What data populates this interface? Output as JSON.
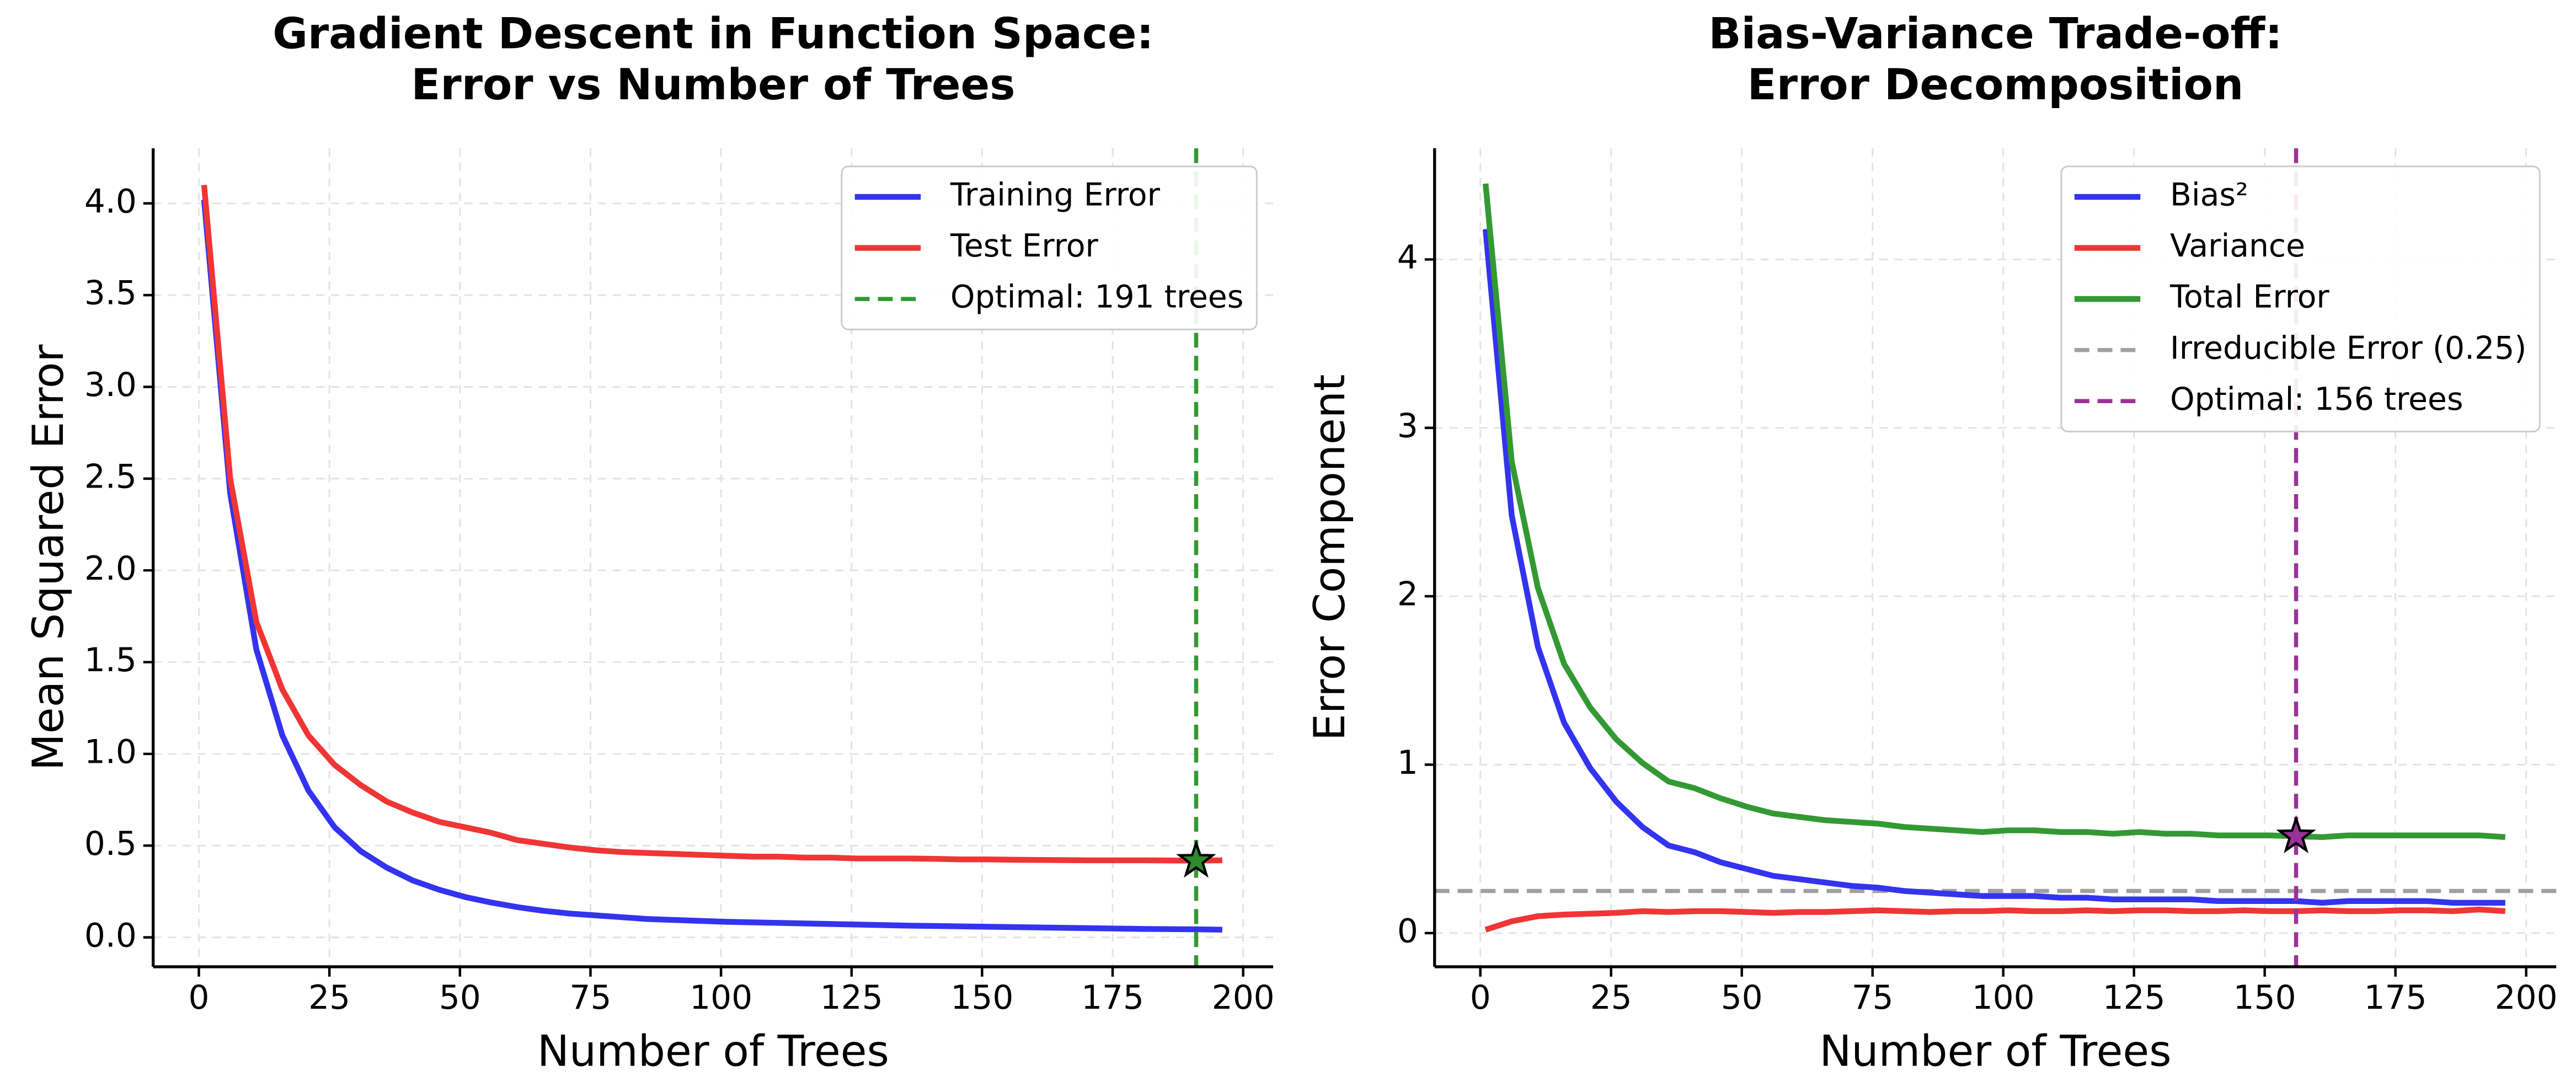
{
  "chart_data": [
    {
      "type": "line",
      "title": [
        "Gradient Descent in Function Space:",
        "Error vs Number of Trees"
      ],
      "xlabel": "Number of Trees",
      "ylabel": "Mean Squared Error",
      "x": [
        1,
        6,
        11,
        16,
        21,
        26,
        31,
        36,
        41,
        46,
        51,
        56,
        61,
        66,
        71,
        76,
        81,
        86,
        91,
        96,
        101,
        106,
        111,
        116,
        121,
        126,
        131,
        136,
        141,
        146,
        151,
        156,
        161,
        166,
        171,
        176,
        181,
        186,
        191,
        196
      ],
      "series": [
        {
          "name": "Training Error",
          "color": "#3333f0",
          "values": [
            4.02,
            2.42,
            1.57,
            1.1,
            0.8,
            0.6,
            0.47,
            0.38,
            0.31,
            0.26,
            0.22,
            0.19,
            0.165,
            0.145,
            0.13,
            0.12,
            0.11,
            0.1,
            0.095,
            0.09,
            0.085,
            0.082,
            0.079,
            0.076,
            0.073,
            0.07,
            0.067,
            0.064,
            0.062,
            0.06,
            0.058,
            0.056,
            0.054,
            0.052,
            0.05,
            0.048,
            0.046,
            0.045,
            0.044,
            0.042
          ]
        },
        {
          "name": "Test Error",
          "color": "#f03535",
          "values": [
            4.1,
            2.5,
            1.72,
            1.35,
            1.1,
            0.94,
            0.83,
            0.74,
            0.68,
            0.63,
            0.6,
            0.57,
            0.53,
            0.51,
            0.49,
            0.475,
            0.465,
            0.46,
            0.455,
            0.45,
            0.445,
            0.44,
            0.44,
            0.435,
            0.435,
            0.43,
            0.43,
            0.43,
            0.428,
            0.425,
            0.425,
            0.423,
            0.422,
            0.421,
            0.42,
            0.42,
            0.42,
            0.419,
            0.418,
            0.42
          ]
        }
      ],
      "vlines": [
        {
          "x": 191,
          "name": "Optimal: 191 trees",
          "color": "#339933"
        }
      ],
      "markers": [
        {
          "x": 191,
          "y": 0.418,
          "color": "#2e8b2e"
        }
      ],
      "xlim": [
        -8.75,
        205.75
      ],
      "ylim": [
        -0.16,
        4.3
      ],
      "xticks": [
        0,
        25,
        50,
        75,
        100,
        125,
        150,
        175,
        200
      ],
      "yticks": [
        {
          "value": 0,
          "label": "0.0"
        },
        0.5,
        {
          "value": 1,
          "label": "1.0"
        },
        1.5,
        {
          "value": 2,
          "label": "2.0"
        },
        2.5,
        {
          "value": 3,
          "label": "3.0"
        },
        3.5,
        {
          "value": 4,
          "label": "4.0"
        }
      ],
      "grid": true,
      "legend": "upper right"
    },
    {
      "type": "line",
      "title": [
        "Bias-Variance Trade-off:",
        "Error Decomposition"
      ],
      "xlabel": "Number of Trees",
      "ylabel": "Error Component",
      "x": [
        1,
        6,
        11,
        16,
        21,
        26,
        31,
        36,
        41,
        46,
        51,
        56,
        61,
        66,
        71,
        76,
        81,
        86,
        91,
        96,
        101,
        106,
        111,
        116,
        121,
        126,
        131,
        136,
        141,
        146,
        151,
        156,
        161,
        166,
        171,
        176,
        181,
        186,
        191,
        196
      ],
      "series": [
        {
          "name": "Bias²",
          "color": "#3333f0",
          "values": [
            4.18,
            2.48,
            1.7,
            1.25,
            0.98,
            0.78,
            0.63,
            0.52,
            0.48,
            0.42,
            0.38,
            0.34,
            0.32,
            0.3,
            0.28,
            0.27,
            0.25,
            0.24,
            0.23,
            0.22,
            0.22,
            0.22,
            0.21,
            0.21,
            0.2,
            0.2,
            0.2,
            0.2,
            0.19,
            0.19,
            0.19,
            0.19,
            0.18,
            0.19,
            0.19,
            0.19,
            0.19,
            0.18,
            0.18,
            0.18
          ]
        },
        {
          "name": "Variance",
          "color": "#f03535",
          "values": [
            0.02,
            0.07,
            0.1,
            0.11,
            0.115,
            0.12,
            0.13,
            0.125,
            0.13,
            0.13,
            0.125,
            0.12,
            0.125,
            0.125,
            0.13,
            0.135,
            0.13,
            0.125,
            0.13,
            0.13,
            0.135,
            0.13,
            0.13,
            0.135,
            0.13,
            0.135,
            0.135,
            0.13,
            0.13,
            0.135,
            0.13,
            0.13,
            0.135,
            0.13,
            0.13,
            0.135,
            0.135,
            0.13,
            0.14,
            0.13
          ]
        },
        {
          "name": "Total Error",
          "color": "#339933",
          "values": [
            4.45,
            2.8,
            2.05,
            1.6,
            1.34,
            1.15,
            1.01,
            0.9,
            0.86,
            0.8,
            0.75,
            0.71,
            0.69,
            0.67,
            0.66,
            0.65,
            0.63,
            0.62,
            0.61,
            0.6,
            0.61,
            0.61,
            0.6,
            0.6,
            0.59,
            0.6,
            0.59,
            0.59,
            0.58,
            0.58,
            0.58,
            0.575,
            0.57,
            0.58,
            0.58,
            0.58,
            0.58,
            0.58,
            0.58,
            0.57
          ]
        }
      ],
      "hlines": [
        {
          "y": 0.25,
          "name": "Irreducible Error (0.25)",
          "color": "#a0a0a0"
        }
      ],
      "vlines": [
        {
          "x": 156,
          "name": "Optimal: 156 trees",
          "color": "#993399"
        }
      ],
      "markers": [
        {
          "x": 156,
          "y": 0.575,
          "color": "#993399"
        }
      ],
      "xlim": [
        -8.75,
        205.75
      ],
      "ylim": [
        -0.2,
        4.66
      ],
      "xticks": [
        0,
        25,
        50,
        75,
        100,
        125,
        150,
        175,
        200
      ],
      "yticks": [
        0,
        1,
        2,
        3,
        4
      ],
      "grid": true,
      "legend": "upper right"
    }
  ]
}
